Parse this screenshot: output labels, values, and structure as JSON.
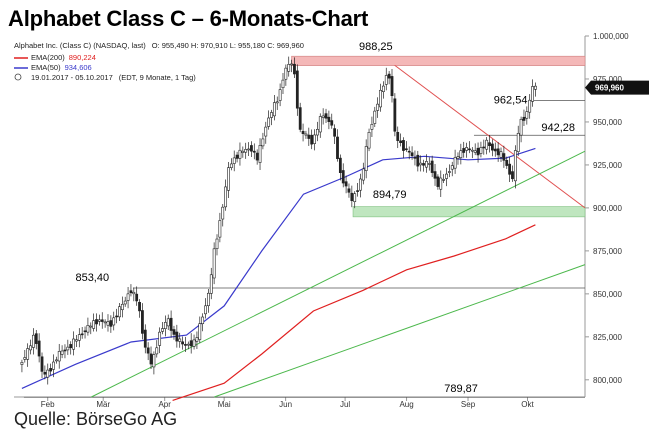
{
  "title": "Alphabet Class C – 6-Monats-Chart",
  "source": "Quelle: BörseGo AG",
  "header": {
    "instrument": "Alphabet Inc. (Class C) (NASDAQ, last)",
    "ohlc": "O: 955,490  H: 970,910  L: 955,180  C: 969,960",
    "ema200_label": "EMA(200)",
    "ema200_value": "890,224",
    "ema50_label": "EMA(50)",
    "ema50_value": "934,606",
    "range": "19.01.2017 - 05.10.2017",
    "range_meta": "(EDT, 9 Monate, 1 Tag)"
  },
  "colors": {
    "candle": "#222222",
    "ema50": "#3a3acc",
    "ema200": "#e02020",
    "resistance_zone": "#f4b8b8",
    "support_zone": "#bfe6bf",
    "downtrend": "#e05050",
    "uptrend": "#4cb84c",
    "horizontal": "#555555"
  },
  "chart_data": {
    "type": "candlestick",
    "y_axis": {
      "min": 790000,
      "max": 1000000,
      "ticks": [
        800000,
        825000,
        850000,
        875000,
        900000,
        925000,
        950000,
        975000,
        1000000
      ],
      "tick_labels": [
        "800,000",
        "825,000",
        "850,000",
        "875,000",
        "900,000",
        "925,000",
        "950,000",
        "975,000",
        "1.000,000"
      ],
      "position": "right"
    },
    "x_axis": {
      "start": "2017-01-19",
      "end": "2017-10-05",
      "ticks": [
        "2017-02-01",
        "2017-03-01",
        "2017-04-01",
        "2017-05-01",
        "2017-06-01",
        "2017-07-01",
        "2017-08-01",
        "2017-09-01",
        "2017-10-01"
      ],
      "tick_labels": [
        "Feb",
        "Mär",
        "Apr",
        "Mai",
        "Jun",
        "Jul",
        "Aug",
        "Sep",
        "Okt"
      ]
    },
    "price_path": [
      [
        "2017-01-19",
        808
      ],
      [
        "2017-01-24",
        818
      ],
      [
        "2017-01-27",
        827
      ],
      [
        "2017-01-31",
        802
      ],
      [
        "2017-02-03",
        805
      ],
      [
        "2017-02-08",
        815
      ],
      [
        "2017-02-14",
        820
      ],
      [
        "2017-02-21",
        829
      ],
      [
        "2017-02-28",
        835
      ],
      [
        "2017-03-06",
        832
      ],
      [
        "2017-03-10",
        840
      ],
      [
        "2017-03-14",
        847
      ],
      [
        "2017-03-16",
        853
      ],
      [
        "2017-03-20",
        845
      ],
      [
        "2017-03-23",
        822
      ],
      [
        "2017-03-27",
        808
      ],
      [
        "2017-03-31",
        828
      ],
      [
        "2017-04-04",
        835
      ],
      [
        "2017-04-07",
        826
      ],
      [
        "2017-04-12",
        820
      ],
      [
        "2017-04-18",
        822
      ],
      [
        "2017-04-21",
        835
      ],
      [
        "2017-04-25",
        852
      ],
      [
        "2017-04-27",
        872
      ],
      [
        "2017-05-02",
        903
      ],
      [
        "2017-05-05",
        925
      ],
      [
        "2017-05-10",
        932
      ],
      [
        "2017-05-16",
        935
      ],
      [
        "2017-05-19",
        928
      ],
      [
        "2017-05-24",
        950
      ],
      [
        "2017-05-30",
        965
      ],
      [
        "2017-06-02",
        980
      ],
      [
        "2017-06-06",
        985
      ],
      [
        "2017-06-08",
        968
      ],
      [
        "2017-06-09",
        945
      ],
      [
        "2017-06-13",
        942
      ],
      [
        "2017-06-16",
        938
      ],
      [
        "2017-06-21",
        955
      ],
      [
        "2017-06-26",
        948
      ],
      [
        "2017-06-30",
        920
      ],
      [
        "2017-07-06",
        904
      ],
      [
        "2017-07-11",
        918
      ],
      [
        "2017-07-14",
        942
      ],
      [
        "2017-07-18",
        958
      ],
      [
        "2017-07-24",
        980
      ],
      [
        "2017-07-26",
        968
      ],
      [
        "2017-07-27",
        944
      ],
      [
        "2017-07-31",
        936
      ],
      [
        "2017-08-04",
        932
      ],
      [
        "2017-08-09",
        925
      ],
      [
        "2017-08-14",
        926
      ],
      [
        "2017-08-18",
        913
      ],
      [
        "2017-08-23",
        920
      ],
      [
        "2017-08-28",
        930
      ],
      [
        "2017-09-01",
        935
      ],
      [
        "2017-09-07",
        932
      ],
      [
        "2017-09-12",
        938
      ],
      [
        "2017-09-15",
        934
      ],
      [
        "2017-09-20",
        930
      ],
      [
        "2017-09-22",
        924
      ],
      [
        "2017-09-25",
        917
      ],
      [
        "2017-09-27",
        940
      ],
      [
        "2017-09-29",
        950
      ],
      [
        "2017-10-02",
        955
      ],
      [
        "2017-10-05",
        970
      ]
    ],
    "ema50_path": [
      [
        "2017-01-19",
        795
      ],
      [
        "2017-02-15",
        809
      ],
      [
        "2017-03-15",
        822
      ],
      [
        "2017-04-12",
        826
      ],
      [
        "2017-05-01",
        843
      ],
      [
        "2017-05-20",
        875
      ],
      [
        "2017-06-10",
        908
      ],
      [
        "2017-07-01",
        918
      ],
      [
        "2017-07-20",
        928
      ],
      [
        "2017-08-10",
        930
      ],
      [
        "2017-09-01",
        928
      ],
      [
        "2017-09-20",
        929
      ],
      [
        "2017-10-05",
        934.6
      ]
    ],
    "ema200_path": [
      [
        "2017-04-05",
        788
      ],
      [
        "2017-05-01",
        798
      ],
      [
        "2017-05-20",
        815
      ],
      [
        "2017-06-15",
        840
      ],
      [
        "2017-07-10",
        852
      ],
      [
        "2017-08-01",
        864
      ],
      [
        "2017-08-25",
        872
      ],
      [
        "2017-09-20",
        882
      ],
      [
        "2017-10-05",
        890.2
      ]
    ],
    "levels": [
      {
        "label": "988,25",
        "value": 988.25,
        "style": "resistance-zone"
      },
      {
        "label": "962,54",
        "value": 962.54,
        "style": "line"
      },
      {
        "label": "942,28",
        "value": 942.28,
        "style": "line"
      },
      {
        "label": "894,79",
        "value": 894.79,
        "style": "support-zone"
      },
      {
        "label": "853,40",
        "value": 853.4,
        "style": "line"
      },
      {
        "label": "789,87",
        "value": 789.87,
        "style": "line"
      }
    ],
    "trendlines": [
      {
        "name": "downtrend",
        "from": [
          "2017-07-26",
          983
        ],
        "to": [
          "2017-10-30",
          900
        ]
      },
      {
        "name": "uptrend-upper",
        "from": [
          "2017-02-23",
          790
        ],
        "to": [
          "2017-10-30",
          933
        ]
      },
      {
        "name": "uptrend-lower",
        "from": [
          "2017-04-26",
          790
        ],
        "to": [
          "2017-10-30",
          867
        ]
      }
    ],
    "last_price_label": "969,960",
    "last_price": 969.96
  }
}
